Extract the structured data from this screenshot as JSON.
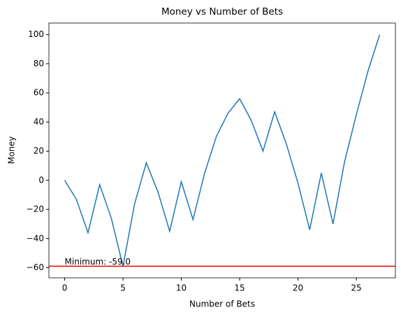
{
  "chart_data": {
    "type": "line",
    "title": "Money vs Number of Bets",
    "xlabel": "Number of Bets",
    "ylabel": "Money",
    "x": [
      0,
      1,
      2,
      3,
      4,
      5,
      6,
      7,
      8,
      9,
      10,
      11,
      12,
      13,
      14,
      15,
      16,
      17,
      18,
      19,
      20,
      21,
      22,
      23,
      24,
      25,
      26,
      27
    ],
    "series": [
      {
        "name": "Money",
        "color": "#1f77b4",
        "values": [
          0,
          -13,
          -36,
          -3,
          -26,
          -59,
          -16,
          12,
          -8,
          -35,
          -1,
          -27,
          5,
          30,
          46,
          56,
          41,
          20,
          47,
          25,
          -2,
          -34,
          5,
          -30,
          13,
          45,
          75,
          100
        ]
      }
    ],
    "hline": {
      "value": -59,
      "color": "#ff0000",
      "label": "Minimum: -59.0"
    },
    "xlim": [
      -1.35,
      28.35
    ],
    "ylim": [
      -66.95,
      107.95
    ],
    "xticks": [
      0,
      5,
      10,
      15,
      20,
      25
    ],
    "yticks": [
      {
        "value": -60,
        "label": "−60"
      },
      {
        "value": -40,
        "label": "−40"
      },
      {
        "value": -20,
        "label": "−20"
      },
      0,
      20,
      40,
      60,
      80,
      100
    ],
    "grid": false
  }
}
